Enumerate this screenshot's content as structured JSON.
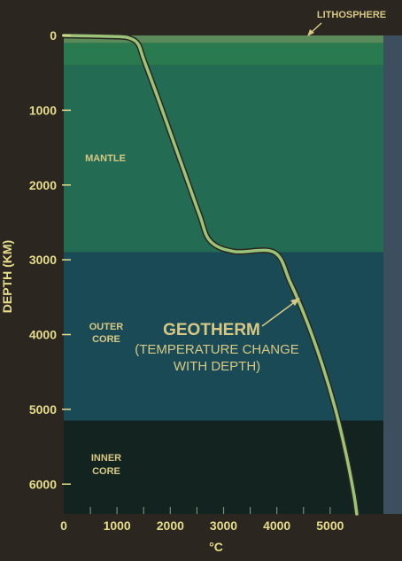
{
  "chart_data": {
    "type": "line",
    "title": "",
    "xlabel": "°C",
    "ylabel": "DEPTH (KM)",
    "xlim": [
      0,
      6000
    ],
    "ylim": [
      0,
      6400
    ],
    "y_inverted": true,
    "x_ticks": [
      0,
      1000,
      2000,
      3000,
      4000,
      5000
    ],
    "x_tick_labels": [
      "0",
      "1000",
      "2000",
      "3000",
      "4000",
      "5000"
    ],
    "y_ticks": [
      0,
      1000,
      2000,
      3000,
      4000,
      5000,
      6000
    ],
    "y_tick_labels": [
      "0",
      "1000",
      "2000",
      "3000",
      "4000",
      "5000",
      "6000"
    ],
    "layers": [
      {
        "name": "LITHOSPHERE",
        "top": 0,
        "bottom": 100,
        "color": "#5a8a5a"
      },
      {
        "name": "",
        "top": 100,
        "bottom": 400,
        "color": "#2a7a4f"
      },
      {
        "name": "MANTLE",
        "top": 400,
        "bottom": 2900,
        "color": "#236b52"
      },
      {
        "name": "OUTER CORE",
        "top": 2900,
        "bottom": 5150,
        "color": "#1a4a55"
      },
      {
        "name": "INNER CORE",
        "top": 5150,
        "bottom": 6400,
        "color": "#132420"
      }
    ],
    "series": [
      {
        "name": "GEOTHERM",
        "color": "#9bc47a",
        "points": [
          [
            0,
            0
          ],
          [
            1000,
            15
          ],
          [
            1250,
            40
          ],
          [
            1400,
            120
          ],
          [
            1500,
            320
          ],
          [
            1750,
            800
          ],
          [
            2000,
            1300
          ],
          [
            2250,
            1800
          ],
          [
            2550,
            2400
          ],
          [
            2750,
            2750
          ],
          [
            3200,
            2890
          ],
          [
            3950,
            2900
          ],
          [
            4250,
            3300
          ],
          [
            4550,
            3800
          ],
          [
            4850,
            4400
          ],
          [
            5100,
            5000
          ],
          [
            5300,
            5600
          ],
          [
            5450,
            6150
          ],
          [
            5500,
            6400
          ]
        ]
      }
    ],
    "annotations": {
      "geotherm_title": "GEOTHERM",
      "geotherm_subtitle_line1": "(TEMPERATURE CHANGE",
      "geotherm_subtitle_line2": "WITH DEPTH)",
      "lithosphere": "LITHOSPHERE",
      "mantle": "MANTLE",
      "outer_core_line1": "OUTER",
      "outer_core_line2": "CORE",
      "inner_core_line1": "INNER",
      "inner_core_line2": "CORE"
    },
    "grid": false,
    "legend": "none"
  }
}
